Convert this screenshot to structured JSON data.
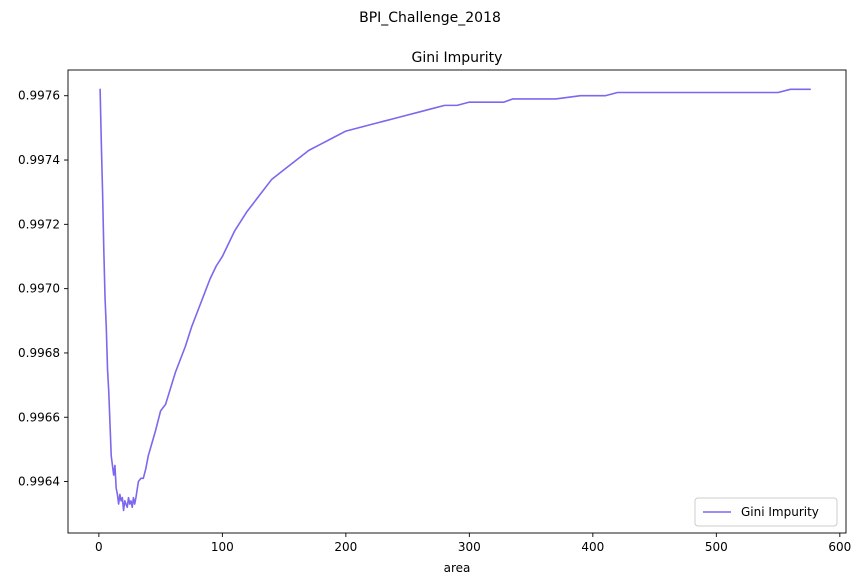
{
  "figure": {
    "suptitle": "BPI_Challenge_2018"
  },
  "colors": {
    "series": "#7b68ee",
    "axis": "#000000",
    "legend_border": "#cccccc",
    "background": "#ffffff"
  },
  "chart_data": {
    "type": "line",
    "title": "Gini Impurity",
    "xlabel": "area",
    "ylabel": "",
    "xlim": [
      -25,
      605
    ],
    "ylim": [
      0.99624,
      0.99768
    ],
    "xticks": [
      0,
      100,
      200,
      300,
      400,
      500,
      600
    ],
    "xtick_labels": [
      "0",
      "100",
      "200",
      "300",
      "400",
      "500",
      "600"
    ],
    "yticks": [
      0.9964,
      0.9966,
      0.9968,
      0.997,
      0.9972,
      0.9974,
      0.9976
    ],
    "ytick_labels": [
      "0.9964",
      "0.9966",
      "0.9968",
      "0.9970",
      "0.9972",
      "0.9974",
      "0.9976"
    ],
    "grid": false,
    "legend": {
      "position": "lower right",
      "entries": [
        "Gini Impurity"
      ]
    },
    "series": [
      {
        "name": "Gini Impurity",
        "color": "#7b68ee",
        "x": [
          1,
          2,
          3,
          4,
          5,
          6,
          7,
          8,
          9,
          10,
          11,
          12,
          13,
          14,
          15,
          16,
          17,
          18,
          19,
          20,
          21,
          22,
          23,
          24,
          25,
          26,
          27,
          28,
          29,
          30,
          32,
          34,
          36,
          38,
          40,
          43,
          46,
          50,
          54,
          58,
          62,
          66,
          70,
          75,
          80,
          85,
          90,
          95,
          100,
          110,
          120,
          130,
          140,
          150,
          160,
          170,
          180,
          190,
          200,
          210,
          220,
          230,
          240,
          250,
          260,
          270,
          280,
          290,
          300,
          310,
          320,
          328,
          335,
          340,
          350,
          370,
          390,
          400,
          410,
          420,
          450,
          500,
          536,
          550,
          560,
          570,
          576
        ],
        "values": [
          0.99762,
          0.99745,
          0.9973,
          0.99712,
          0.99697,
          0.99688,
          0.99675,
          0.99668,
          0.99658,
          0.99648,
          0.99645,
          0.99642,
          0.99645,
          0.99638,
          0.99636,
          0.99633,
          0.99636,
          0.99634,
          0.99635,
          0.99631,
          0.99634,
          0.99633,
          0.99632,
          0.99635,
          0.99633,
          0.99634,
          0.99632,
          0.99635,
          0.99633,
          0.99635,
          0.9964,
          0.99641,
          0.99641,
          0.99644,
          0.99648,
          0.99652,
          0.99656,
          0.99662,
          0.99664,
          0.99669,
          0.99674,
          0.99678,
          0.99682,
          0.99688,
          0.99693,
          0.99698,
          0.99703,
          0.99707,
          0.9971,
          0.99718,
          0.99724,
          0.99729,
          0.99734,
          0.99737,
          0.9974,
          0.99743,
          0.99745,
          0.99747,
          0.99749,
          0.9975,
          0.99751,
          0.99752,
          0.99753,
          0.99754,
          0.99755,
          0.99756,
          0.99757,
          0.99757,
          0.99758,
          0.99758,
          0.99758,
          0.99758,
          0.99759,
          0.99759,
          0.99759,
          0.99759,
          0.9976,
          0.9976,
          0.9976,
          0.99761,
          0.99761,
          0.99761,
          0.99761,
          0.99761,
          0.99762,
          0.99762,
          0.99762
        ]
      }
    ]
  }
}
